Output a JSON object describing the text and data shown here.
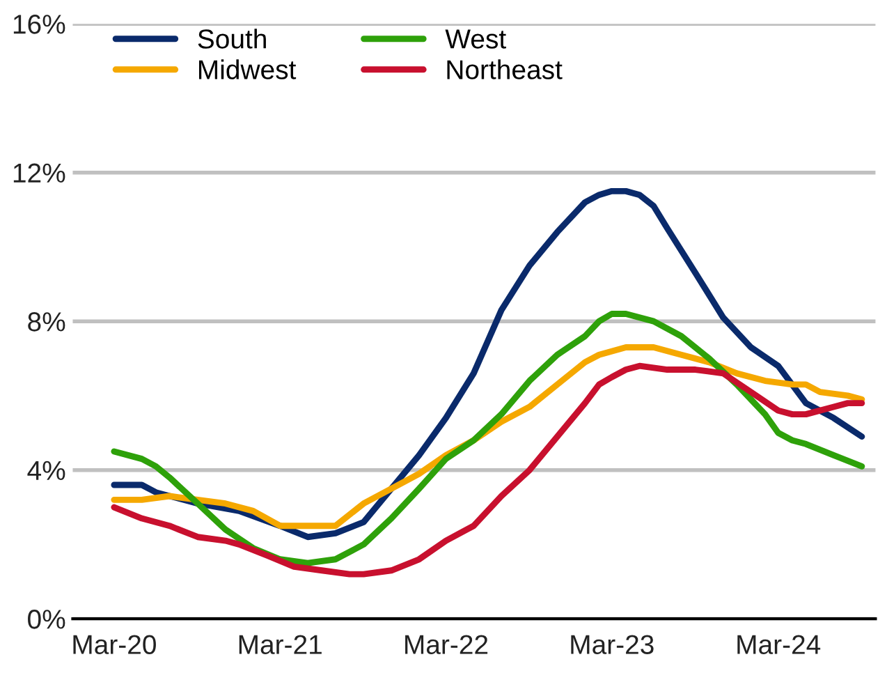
{
  "chart_data": {
    "type": "line",
    "xlim": [
      "2019-12",
      "2024-10"
    ],
    "xticks": [
      {
        "value": "2020-03",
        "label": "Mar-20"
      },
      {
        "value": "2021-03",
        "label": "Mar-21"
      },
      {
        "value": "2022-03",
        "label": "Mar-22"
      },
      {
        "value": "2023-03",
        "label": "Mar-23"
      },
      {
        "value": "2024-03",
        "label": "Mar-24"
      }
    ],
    "ylim": [
      0,
      16
    ],
    "yticks": [
      {
        "value": 0,
        "label": "0%"
      },
      {
        "value": 4,
        "label": "4%"
      },
      {
        "value": 8,
        "label": "8%"
      },
      {
        "value": 12,
        "label": "12%"
      },
      {
        "value": 16,
        "label": "16%"
      }
    ],
    "grid": "y",
    "legend": "top",
    "marker": "none",
    "line_style": "solid",
    "series": [
      {
        "name": "South",
        "color": "#0a2a6b",
        "x": [
          "2020-03",
          "2020-05",
          "2020-06",
          "2020-09",
          "2020-12",
          "2021-03",
          "2021-05",
          "2021-07",
          "2021-09",
          "2021-11",
          "2022-01",
          "2022-03",
          "2022-05",
          "2022-07",
          "2022-09",
          "2022-11",
          "2023-01",
          "2023-02",
          "2023-03",
          "2023-04",
          "2023-05",
          "2023-06",
          "2023-07",
          "2023-09",
          "2023-11",
          "2024-01",
          "2024-03",
          "2024-05",
          "2024-07",
          "2024-09"
        ],
        "values": [
          3.6,
          3.6,
          3.4,
          3.1,
          2.9,
          2.5,
          2.2,
          2.3,
          2.6,
          3.5,
          4.4,
          5.4,
          6.6,
          8.3,
          9.5,
          10.4,
          11.2,
          11.4,
          11.5,
          11.5,
          11.4,
          11.1,
          10.5,
          9.3,
          8.1,
          7.3,
          6.8,
          5.8,
          5.4,
          4.9
        ]
      },
      {
        "name": "Midwest",
        "color": "#f5a800",
        "x": [
          "2020-03",
          "2020-05",
          "2020-07",
          "2020-09",
          "2020-11",
          "2021-01",
          "2021-03",
          "2021-05",
          "2021-07",
          "2021-09",
          "2021-11",
          "2022-01",
          "2022-03",
          "2022-05",
          "2022-07",
          "2022-09",
          "2022-11",
          "2023-01",
          "2023-02",
          "2023-04",
          "2023-05",
          "2023-06",
          "2023-08",
          "2023-10",
          "2023-12",
          "2024-02",
          "2024-04",
          "2024-05",
          "2024-06",
          "2024-08",
          "2024-09"
        ],
        "values": [
          3.2,
          3.2,
          3.3,
          3.2,
          3.1,
          2.9,
          2.5,
          2.5,
          2.5,
          3.1,
          3.5,
          3.9,
          4.4,
          4.8,
          5.3,
          5.7,
          6.3,
          6.9,
          7.1,
          7.3,
          7.3,
          7.3,
          7.1,
          6.9,
          6.6,
          6.4,
          6.3,
          6.3,
          6.1,
          6.0,
          5.9
        ]
      },
      {
        "name": "West",
        "color": "#2ea10a",
        "x": [
          "2020-03",
          "2020-05",
          "2020-06",
          "2020-07",
          "2020-09",
          "2020-11",
          "2021-01",
          "2021-03",
          "2021-05",
          "2021-07",
          "2021-09",
          "2021-11",
          "2022-01",
          "2022-03",
          "2022-05",
          "2022-07",
          "2022-09",
          "2022-11",
          "2023-01",
          "2023-02",
          "2023-03",
          "2023-04",
          "2023-06",
          "2023-08",
          "2023-10",
          "2023-12",
          "2024-02",
          "2024-03",
          "2024-04",
          "2024-05",
          "2024-07",
          "2024-09"
        ],
        "values": [
          4.5,
          4.3,
          4.1,
          3.8,
          3.1,
          2.4,
          1.9,
          1.6,
          1.5,
          1.6,
          2.0,
          2.7,
          3.5,
          4.3,
          4.8,
          5.5,
          6.4,
          7.1,
          7.6,
          8.0,
          8.2,
          8.2,
          8.0,
          7.6,
          7.0,
          6.3,
          5.5,
          5.0,
          4.8,
          4.7,
          4.4,
          4.1
        ]
      },
      {
        "name": "Northeast",
        "color": "#c8102e",
        "x": [
          "2020-03",
          "2020-05",
          "2020-07",
          "2020-09",
          "2020-11",
          "2020-12",
          "2021-02",
          "2021-04",
          "2021-06",
          "2021-08",
          "2021-09",
          "2021-11",
          "2022-01",
          "2022-03",
          "2022-05",
          "2022-07",
          "2022-09",
          "2022-11",
          "2023-01",
          "2023-02",
          "2023-03",
          "2023-04",
          "2023-05",
          "2023-07",
          "2023-09",
          "2023-11",
          "2024-01",
          "2024-03",
          "2024-04",
          "2024-05",
          "2024-07",
          "2024-08",
          "2024-09"
        ],
        "values": [
          3.0,
          2.7,
          2.5,
          2.2,
          2.1,
          2.0,
          1.7,
          1.4,
          1.3,
          1.2,
          1.2,
          1.3,
          1.6,
          2.1,
          2.5,
          3.3,
          4.0,
          4.9,
          5.8,
          6.3,
          6.5,
          6.7,
          6.8,
          6.7,
          6.7,
          6.6,
          6.1,
          5.6,
          5.5,
          5.5,
          5.7,
          5.8,
          5.8
        ]
      }
    ]
  }
}
